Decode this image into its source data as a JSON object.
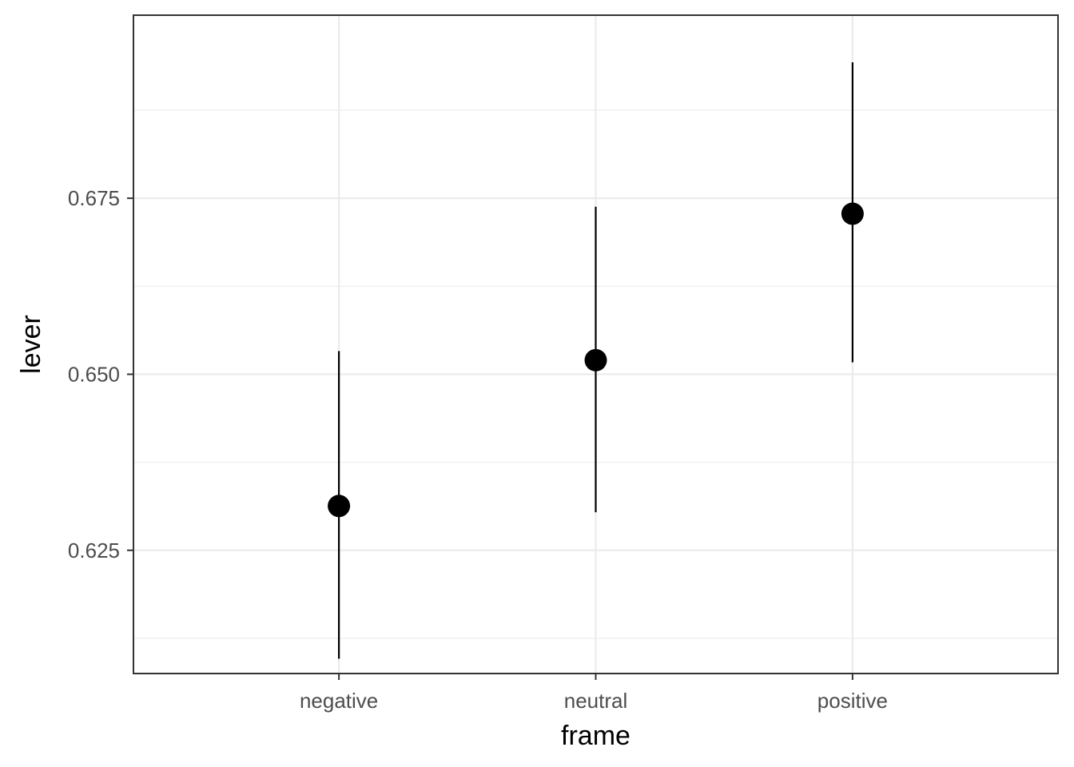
{
  "chart_data": {
    "type": "scatter",
    "title": "",
    "xlabel": "frame",
    "ylabel": "lever",
    "categories": [
      "negative",
      "neutral",
      "positive"
    ],
    "points": [
      {
        "x": "negative",
        "y": 0.6313,
        "ymin": 0.6096,
        "ymax": 0.6533
      },
      {
        "x": "neutral",
        "y": 0.652,
        "ymin": 0.6304,
        "ymax": 0.6738
      },
      {
        "x": "positive",
        "y": 0.6728,
        "ymin": 0.6517,
        "ymax": 0.6943
      }
    ],
    "ylim": [
      0.6075,
      0.701
    ],
    "yticks": [
      0.625,
      0.65,
      0.675
    ],
    "ytick_labels": [
      "0.625",
      "0.650",
      "0.675"
    ],
    "yminor": [
      0.6125,
      0.6375,
      0.6625,
      0.6875
    ],
    "grid": true,
    "legend": "none",
    "colors": {
      "points": "#000000",
      "grid": "#ebebeb",
      "border": "#333333",
      "ticklabels": "#4d4d4d"
    }
  }
}
